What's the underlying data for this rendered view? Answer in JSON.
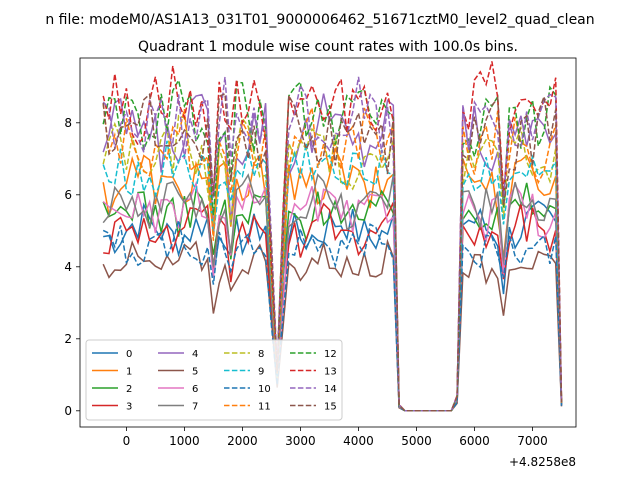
{
  "chart_data": {
    "type": "line",
    "suptitle": "n file: modeM0/AS1A13_031T01_9000006462_51671cztM0_level2_quad_clean",
    "title": "Quadrant 1 module wise count rates with 100.0s bins.",
    "xlabel": "",
    "ylabel": "",
    "offset_label": "+4.8258e8",
    "xlim": [
      -800,
      7750
    ],
    "ylim": [
      -0.45,
      9.8
    ],
    "xticks": [
      0,
      1000,
      2000,
      3000,
      4000,
      5000,
      6000,
      7000
    ],
    "xtick_labels": [
      "0",
      "1000",
      "2000",
      "3000",
      "4000",
      "5000",
      "6000",
      "7000"
    ],
    "yticks": [
      0,
      2,
      4,
      6,
      8
    ],
    "ytick_labels": [
      "0",
      "2",
      "4",
      "6",
      "8"
    ],
    "grid": false,
    "legend": {
      "position": "lower-left",
      "columns": 4
    },
    "x": {
      "start": -400,
      "step": 100,
      "count": 80
    },
    "series": [
      {
        "name": "0",
        "color": "#1f77b4",
        "style": "solid",
        "level": 5.05
      },
      {
        "name": "1",
        "color": "#ff7f0e",
        "style": "solid",
        "level": 6.35
      },
      {
        "name": "2",
        "color": "#2ca02c",
        "style": "solid",
        "level": 5.55
      },
      {
        "name": "3",
        "color": "#d62728",
        "style": "solid",
        "level": 5.0
      },
      {
        "name": "4",
        "color": "#9467bd",
        "style": "solid",
        "level": 7.7
      },
      {
        "name": "5",
        "color": "#8c564b",
        "style": "solid",
        "level": 4.1
      },
      {
        "name": "6",
        "color": "#e377c2",
        "style": "solid",
        "level": 5.5
      },
      {
        "name": "7",
        "color": "#7f7f7f",
        "style": "solid",
        "level": 5.8
      },
      {
        "name": "8",
        "color": "#bcbd22",
        "style": "dashed",
        "level": 7.1
      },
      {
        "name": "9",
        "color": "#17becf",
        "style": "dashed",
        "level": 6.65
      },
      {
        "name": "10",
        "color": "#1f77b4",
        "style": "dashed",
        "level": 4.6
      },
      {
        "name": "11",
        "color": "#ff7f0e",
        "style": "dashed",
        "level": 7.45
      },
      {
        "name": "12",
        "color": "#2ca02c",
        "style": "dashed",
        "level": 8.15
      },
      {
        "name": "13",
        "color": "#d62728",
        "style": "dashed",
        "level": 8.55
      },
      {
        "name": "14",
        "color": "#9467bd",
        "style": "dashed",
        "level": 8.05
      },
      {
        "name": "15",
        "color": "#8c564b",
        "style": "dashed",
        "level": 7.75
      }
    ],
    "dips": [
      {
        "x": 1500,
        "factor": 0.72
      },
      {
        "x": 1800,
        "factor": 0.8
      },
      {
        "x": 2500,
        "factor": 0.55
      },
      {
        "x": 2600,
        "factor": 0.15
      },
      {
        "x": 2700,
        "factor": 0.62
      },
      {
        "x": 6500,
        "factor": 0.72
      }
    ],
    "zero_ranges": [
      [
        4800,
        5600
      ]
    ],
    "low_points": [
      {
        "x": 4700,
        "factor": 0.02
      },
      {
        "x": 5700,
        "factor": 0.05
      },
      {
        "x": 7500,
        "factor": 0.03
      }
    ]
  }
}
